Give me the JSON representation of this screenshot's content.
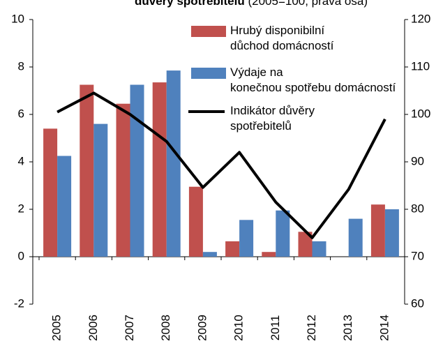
{
  "chart_data": {
    "type": "bar",
    "title": "důvěry spotřebitelů",
    "subtitle": "(2005=100, pravá osa)",
    "categories": [
      "2005",
      "2006",
      "2007",
      "2008",
      "2009",
      "2010",
      "2011",
      "2012",
      "2013",
      "2014"
    ],
    "series": [
      {
        "name": "Hrubý disponibilní důchod domácností",
        "color": "#c0504d",
        "values": [
          5.4,
          7.25,
          6.45,
          7.35,
          2.95,
          0.65,
          0.2,
          1.05,
          null,
          2.2
        ]
      },
      {
        "name": "Výdaje na konečnou spotřebu domácností",
        "color": "#4f81bd",
        "values": [
          4.25,
          5.6,
          7.25,
          7.85,
          0.2,
          1.55,
          1.95,
          0.65,
          1.6,
          2.0
        ]
      },
      {
        "name": "Indikátor důvěry spotřebitelů",
        "color": "#000000",
        "type": "line",
        "axis": "y2",
        "values": [
          100.5,
          104.5,
          100,
          94.3,
          84.6,
          92,
          81.5,
          74,
          84.2,
          99
        ]
      }
    ],
    "ylim": [
      -2,
      10
    ],
    "yticks": [
      -2,
      0,
      2,
      4,
      6,
      8,
      10
    ],
    "y2lim": [
      60,
      120
    ],
    "y2ticks": [
      60,
      70,
      80,
      90,
      100,
      110,
      120
    ],
    "legend": "top-right"
  }
}
